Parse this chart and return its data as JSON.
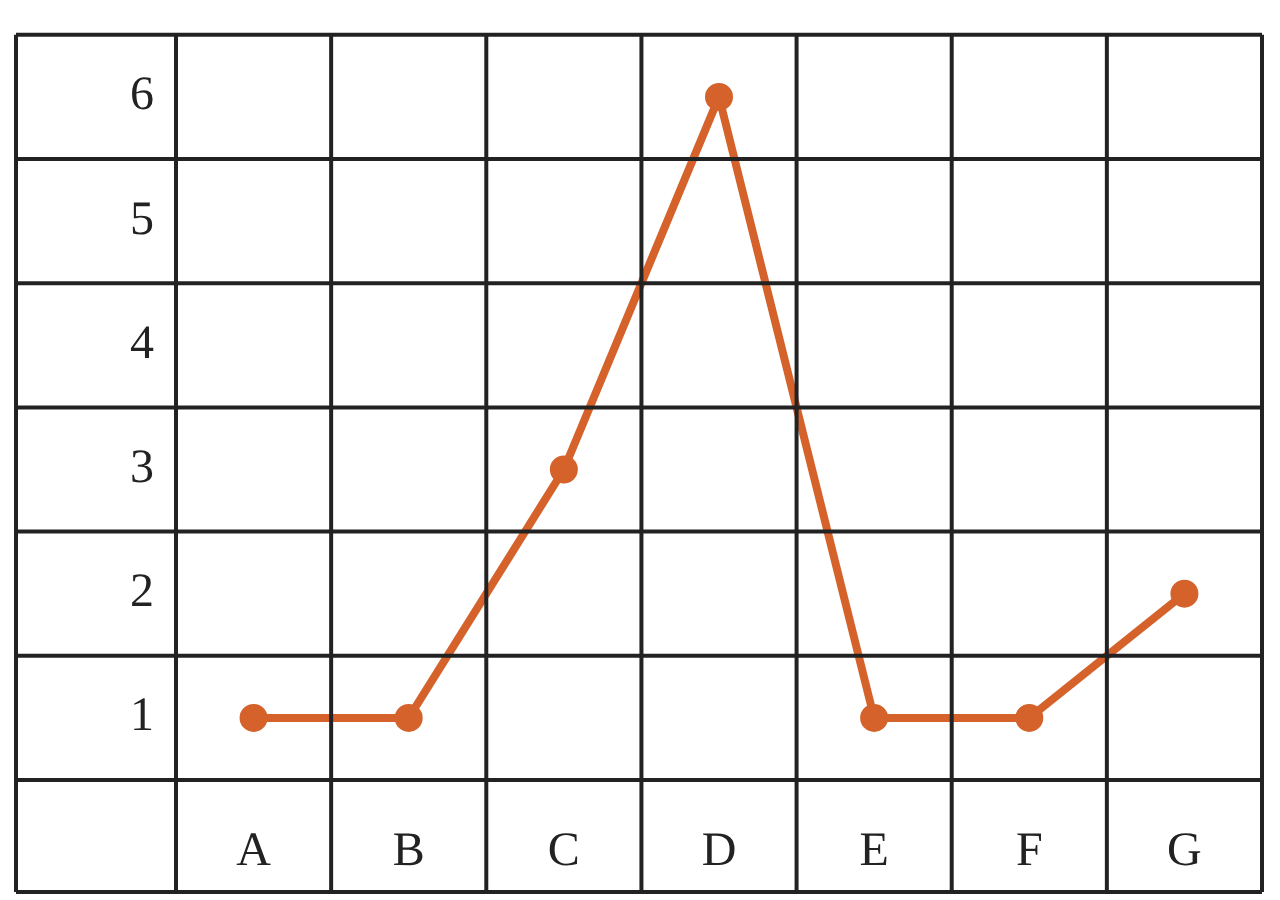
{
  "chart_data": {
    "type": "line",
    "categories": [
      "A",
      "B",
      "C",
      "D",
      "E",
      "F",
      "G"
    ],
    "series": [
      {
        "color": "#d4622a",
        "values": [
          1,
          1,
          3,
          6,
          1,
          1,
          2
        ]
      }
    ],
    "ylim": [
      0.5,
      6.5
    ],
    "yticks": [
      1,
      2,
      3,
      4,
      5,
      6
    ],
    "grid": true,
    "marker": "circle",
    "line_style": "solid",
    "legend": false
  }
}
